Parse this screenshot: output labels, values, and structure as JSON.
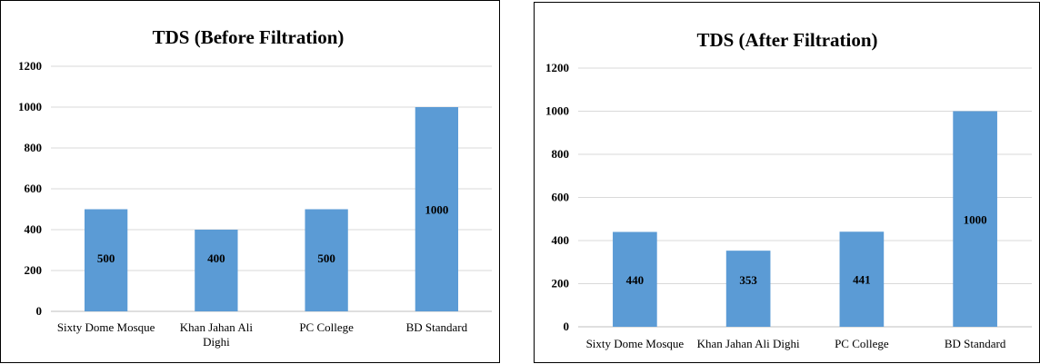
{
  "chart_data": [
    {
      "type": "bar",
      "title": "TDS (Before Filtration)",
      "categories": [
        "Sixty Dome Mosque",
        "Khan Jahan Ali Dighi",
        "PC College",
        "BD Standard"
      ],
      "category_lines": [
        [
          "Sixty Dome Mosque"
        ],
        [
          "Khan Jahan Ali",
          "Dighi"
        ],
        [
          "PC College"
        ],
        [
          "BD Standard"
        ]
      ],
      "values": [
        500,
        400,
        500,
        1000
      ],
      "ylim": [
        0,
        1200
      ],
      "yticks": [
        0,
        200,
        400,
        600,
        800,
        1000,
        1200
      ],
      "grid": true,
      "bar_color": "#5b9bd5",
      "xlabel": "",
      "ylabel": ""
    },
    {
      "type": "bar",
      "title": "TDS (After Filtration)",
      "categories": [
        "Sixty Dome Mosque",
        "Khan Jahan Ali Dighi",
        "PC College",
        "BD Standard"
      ],
      "category_lines": [
        [
          "Sixty Dome Mosque"
        ],
        [
          "Khan Jahan Ali Dighi"
        ],
        [
          "PC College"
        ],
        [
          "BD Standard"
        ]
      ],
      "values": [
        440,
        353,
        441,
        1000
      ],
      "ylim": [
        0,
        1200
      ],
      "yticks": [
        0,
        200,
        400,
        600,
        800,
        1000,
        1200
      ],
      "grid": true,
      "bar_color": "#5b9bd5",
      "xlabel": "",
      "ylabel": ""
    }
  ]
}
